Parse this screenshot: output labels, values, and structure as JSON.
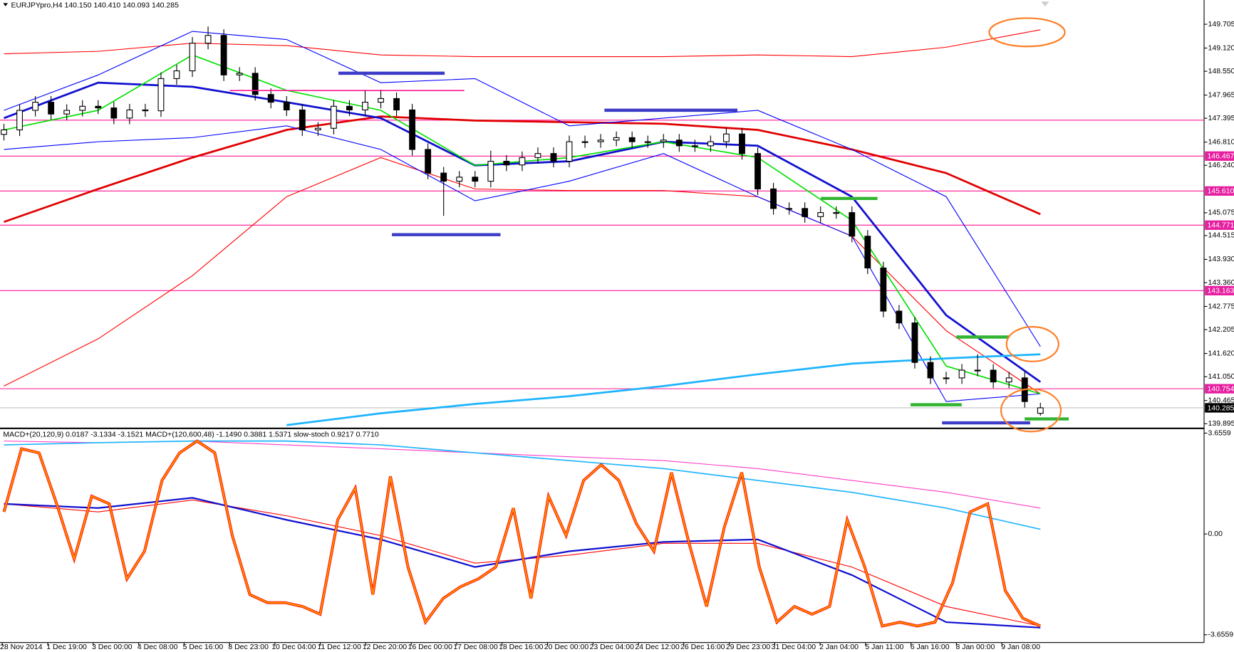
{
  "chart_data": [
    {
      "type": "candlestick",
      "title": "EURJPYpro,H4  140.150 140.410 140.093 140.285",
      "open": [
        147.0,
        147.11,
        147.59,
        147.79,
        147.5,
        147.59,
        147.69,
        147.65,
        147.4,
        147.6,
        147.58,
        148.37,
        148.56,
        149.24,
        149.43,
        148.46,
        148.5,
        147.98,
        147.79,
        147.6,
        147.11,
        147.15,
        147.69,
        147.6,
        147.79,
        147.88,
        147.6,
        146.63,
        146.05,
        145.85,
        145.95,
        145.85,
        146.34,
        146.25,
        146.43,
        146.53,
        146.34,
        146.82,
        146.82,
        146.86,
        146.92,
        146.82,
        146.82,
        146.86,
        146.72,
        146.72,
        146.82,
        147.01,
        146.53,
        145.66,
        145.18,
        145.18,
        144.98,
        145.08,
        145.08,
        144.5,
        143.72,
        142.66,
        142.37,
        141.4,
        141.02,
        141.02,
        141.21,
        141.21,
        140.92,
        141.02,
        140.15
      ],
      "high": [
        147.26,
        147.74,
        147.94,
        147.94,
        147.74,
        147.84,
        147.84,
        147.8,
        147.75,
        147.75,
        148.52,
        148.71,
        149.39,
        149.65,
        149.58,
        148.65,
        148.65,
        148.13,
        147.94,
        147.75,
        147.3,
        147.84,
        147.84,
        148.1,
        148.1,
        148.03,
        147.75,
        146.78,
        146.2,
        146.1,
        146.1,
        146.6,
        146.49,
        146.58,
        146.68,
        146.68,
        146.97,
        146.97,
        147.01,
        147.07,
        147.07,
        146.97,
        147.01,
        147.01,
        146.87,
        146.97,
        147.16,
        147.16,
        146.68,
        145.81,
        145.33,
        145.33,
        145.23,
        145.23,
        145.23,
        144.65,
        143.87,
        142.81,
        142.52,
        141.55,
        141.17,
        141.36,
        141.6,
        141.36,
        141.17,
        141.17,
        140.41
      ],
      "low": [
        146.85,
        146.96,
        147.44,
        147.35,
        147.35,
        147.44,
        147.5,
        147.25,
        147.25,
        147.43,
        147.43,
        148.22,
        148.41,
        149.09,
        148.31,
        148.31,
        147.83,
        147.64,
        147.45,
        146.96,
        146.96,
        147.0,
        147.45,
        147.45,
        147.64,
        147.45,
        146.48,
        145.9,
        145.0,
        145.7,
        145.7,
        145.7,
        146.1,
        146.1,
        146.28,
        146.19,
        146.19,
        146.67,
        146.67,
        146.71,
        146.67,
        146.67,
        146.67,
        146.57,
        146.57,
        146.57,
        146.67,
        146.38,
        145.51,
        145.03,
        145.03,
        144.83,
        144.83,
        144.93,
        144.35,
        143.57,
        142.51,
        142.22,
        141.25,
        140.87,
        140.87,
        140.87,
        141.06,
        140.77,
        140.77,
        140.29,
        140.093
      ],
      "close": [
        147.11,
        147.59,
        147.79,
        147.5,
        147.59,
        147.69,
        147.65,
        147.4,
        147.6,
        147.58,
        148.37,
        148.56,
        149.24,
        149.43,
        148.46,
        148.5,
        147.98,
        147.79,
        147.6,
        147.11,
        147.15,
        147.69,
        147.6,
        147.79,
        147.88,
        147.6,
        146.63,
        146.05,
        145.85,
        145.95,
        145.85,
        146.34,
        146.25,
        146.43,
        146.53,
        146.34,
        146.82,
        146.82,
        146.86,
        146.92,
        146.82,
        146.82,
        146.86,
        146.72,
        146.72,
        146.82,
        147.01,
        146.53,
        145.66,
        145.18,
        145.18,
        144.98,
        145.08,
        145.08,
        144.5,
        143.72,
        142.66,
        142.37,
        141.4,
        141.02,
        141.02,
        141.21,
        141.21,
        140.92,
        141.02,
        140.44,
        140.285
      ],
      "ylim": [
        139.8,
        150.3
      ],
      "yticks": [
        149.705,
        {
          "value": 149.12,
          "label": "149.120"
        },
        {
          "value": 148.55,
          "label": "148.550"
        },
        147.965,
        147.395,
        {
          "value": 146.81,
          "label": "146.810"
        },
        {
          "value": 146.24,
          "label": "146.240"
        },
        145.075,
        144.515,
        {
          "value": 143.93,
          "label": "143.930"
        },
        {
          "value": 143.36,
          "label": "143.360"
        },
        142.775,
        142.205,
        {
          "value": 141.62,
          "label": "141.620"
        },
        {
          "value": 141.05,
          "label": "141.050"
        },
        140.465,
        139.895
      ],
      "levels": [
        146.467,
        {
          "value": 145.61,
          "label": "145.610"
        },
        144.771,
        143.163,
        140.754
      ],
      "unlabeled_levels": [
        147.35
      ],
      "last_price": 140.285,
      "lines": [
        {
          "color": "#ff0000",
          "width": 1,
          "values": [
            148.98,
            149.04,
            149.24,
            149.18,
            148.95,
            148.91,
            148.91,
            148.91,
            148.95,
            148.91,
            149.14,
            149.57
          ]
        },
        {
          "color": "#ff0000",
          "width": 1,
          "values": [
            140.82,
            141.98,
            143.53,
            145.47,
            146.43,
            145.66,
            145.62,
            145.62,
            145.47,
            144.5,
            142.18,
            140.63
          ]
        },
        {
          "color": "#e00000",
          "width": 2.5,
          "values": [
            144.85,
            145.66,
            146.43,
            147.11,
            147.44,
            147.34,
            147.3,
            147.26,
            147.11,
            146.63,
            146.05,
            145.04
          ]
        },
        {
          "color": "#0000ff",
          "width": 1,
          "values": [
            147.59,
            148.46,
            149.53,
            149.33,
            148.27,
            148.37,
            147.21,
            147.4,
            147.59,
            146.63,
            145.47,
            141.79
          ]
        },
        {
          "color": "#0000ff",
          "width": 1,
          "values": [
            146.63,
            146.82,
            146.92,
            147.21,
            146.63,
            145.37,
            145.85,
            146.53,
            145.47,
            144.5,
            140.44,
            140.63
          ]
        },
        {
          "color": "#1010d0",
          "width": 2.5,
          "values": [
            147.4,
            148.27,
            148.17,
            147.79,
            147.4,
            146.24,
            146.34,
            146.82,
            146.72,
            145.47,
            142.56,
            140.92
          ]
        },
        {
          "color": "#00e000",
          "width": 1.5,
          "values": [
            147.11,
            147.59,
            148.95,
            148.08,
            147.59,
            146.24,
            146.43,
            146.82,
            146.43,
            144.89,
            141.31,
            140.63
          ]
        },
        {
          "color": "#1eb4ff",
          "width": 2.5,
          "values": [
            null,
            null,
            null,
            139.86,
            140.15,
            140.38,
            140.57,
            140.82,
            141.11,
            141.37,
            141.5,
            141.6
          ]
        }
      ],
      "xlabels": [
        "28 Nov 2014",
        "1 Dec 19:00",
        "3 Dec 00:00",
        "4 Dec 08:00",
        "5 Dec 16:00",
        "8 Dec 23:00",
        "10 Dec 04:00",
        "11 Dec 12:00",
        "12 Dec 20:00",
        "16 Dec 00:00",
        "17 Dec 08:00",
        "18 Dec 16:00",
        "20 Dec 00:00",
        "23 Dec 04:00",
        "24 Dec 12:00",
        "26 Dec 16:00",
        "29 Dec 23:00",
        "31 Dec 04:00",
        "2 Jan 04:00",
        "5 Jan 11:00",
        "6 Jan 16:00",
        "8 Jan 00:00",
        "9 Jan 08:00"
      ]
    },
    {
      "type": "line",
      "title": "MACD+(20,120,9) 0.0187 -3.1334 -3.1521  MACD+(120,600,48) -1.1490 0.3881 1.5371  slow-stoch 0.9217 0.7710",
      "ylim": [
        -3.91,
        3.8
      ],
      "yticks": [
        3.6559,
        {
          "value": 0,
          "label": "0.00"
        },
        -3.6559
      ],
      "lines": [
        {
          "color": "#ff3cc8",
          "width": 1,
          "values": [
            3.37,
            3.31,
            3.37,
            3.23,
            3.09,
            2.94,
            2.8,
            2.66,
            2.37,
            1.94,
            1.51,
            0.94
          ]
        },
        {
          "color": "#1eb4ff",
          "width": 1.5,
          "values": [
            3.23,
            3.31,
            3.37,
            3.37,
            3.23,
            2.94,
            2.66,
            2.37,
            1.94,
            1.51,
            0.94,
            0.17
          ]
        },
        {
          "color": "#ff0000",
          "width": 1,
          "values": [
            1.09,
            0.8,
            1.23,
            0.66,
            -0.06,
            -1.06,
            -0.77,
            -0.34,
            -0.34,
            -1.2,
            -2.63,
            -3.34
          ]
        },
        {
          "color": "#1010d0",
          "width": 2,
          "values": [
            1.09,
            0.94,
            1.31,
            0.51,
            -0.2,
            -1.2,
            -0.63,
            -0.29,
            -0.2,
            -1.49,
            -3.2,
            -3.4
          ]
        },
        {
          "color": "#ff8c00",
          "width": 2,
          "outline": "#ff0000",
          "values": [
            0.8,
            3.09,
            2.94,
            1.09,
            -0.91,
            1.37,
            1.09,
            -1.63,
            -0.63,
            1.94,
            2.94,
            3.37,
            2.94,
            -0.06,
            -2.2,
            -2.49,
            -2.49,
            -2.63,
            -2.91,
            0.51,
            1.66,
            -2.2,
            2.09,
            -1.2,
            -3.2,
            -2.34,
            -1.91,
            -1.63,
            -1.2,
            0.94,
            -2.34,
            1.37,
            -0.06,
            1.94,
            2.51,
            1.94,
            0.37,
            -0.63,
            2.23,
            -0.34,
            -2.63,
            0.23,
            2.23,
            -1.2,
            -3.2,
            -2.63,
            -2.91,
            -2.63,
            0.51,
            -1.2,
            -3.34,
            -3.2,
            -3.34,
            -3.2,
            -1.77,
            0.8,
            1.09,
            -2.06,
            -3.06,
            -3.34
          ]
        }
      ]
    }
  ]
}
